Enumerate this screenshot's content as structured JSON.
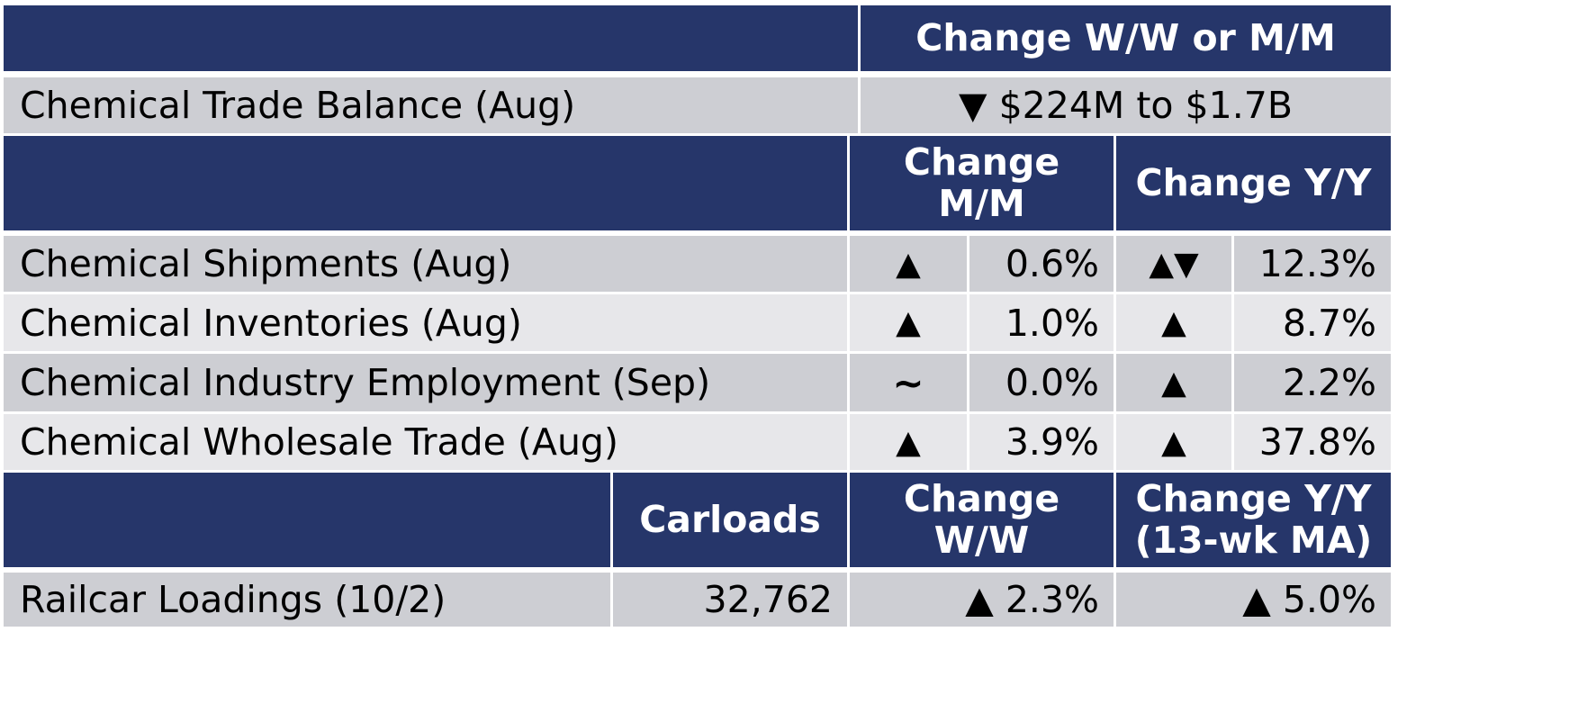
{
  "trade_section": {
    "header": "Change W/W or M/M",
    "row": {
      "label": "Chemical Trade Balance (Aug)",
      "change": "▼ $224M to $1.7B"
    }
  },
  "monthly_section": {
    "header_mm": "Change M/M",
    "header_yy": "Change Y/Y",
    "rows": [
      {
        "label": "Chemical Shipments (Aug)",
        "mm_indicator": "▲",
        "mm_value": "0.6%",
        "yy_indicator": "▲▼",
        "yy_value": "12.3%"
      },
      {
        "label": "Chemical Inventories (Aug)",
        "mm_indicator": "▲",
        "mm_value": "1.0%",
        "yy_indicator": "▲",
        "yy_value": "8.7%"
      },
      {
        "label": "Chemical Industry Employment (Sep)",
        "mm_indicator": "~",
        "mm_value": "0.0%",
        "yy_indicator": "▲",
        "yy_value": "2.2%"
      },
      {
        "label": "Chemical Wholesale Trade (Aug)",
        "mm_indicator": "▲",
        "mm_value": "3.9%",
        "yy_indicator": "▲",
        "yy_value": "37.8%"
      }
    ]
  },
  "rail_section": {
    "header_carloads": "Carloads",
    "header_ww": "Change W/W",
    "header_yy": "Change Y/Y (13-wk MA)",
    "row": {
      "label": "Railcar Loadings (10/2)",
      "carloads": "32,762",
      "ww": "▲ 2.3%",
      "yy": "▲ 5.0%"
    }
  },
  "colors": {
    "header_bg": "#26366a",
    "row_gray": "#cdced3",
    "row_light": "#e7e7ea"
  }
}
